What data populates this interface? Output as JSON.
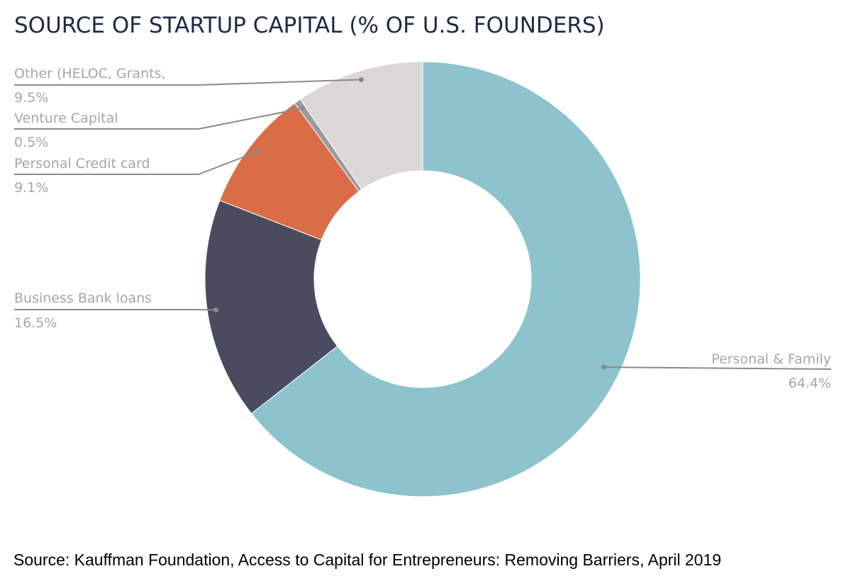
{
  "chart_data": {
    "type": "pie",
    "variant": "donut",
    "title": "SOURCE OF STARTUP CAPITAL (% OF U.S. FOUNDERS)",
    "start": "12 o'clock",
    "direction": "clockwise",
    "slices": [
      {
        "label": "Personal & Family",
        "value": 64.4,
        "value_label": "64.4%",
        "color": "#8cc3cd"
      },
      {
        "label": "Business Bank loans",
        "value": 16.5,
        "value_label": "16.5%",
        "color": "#4a4b5e"
      },
      {
        "label": "Personal Credit card",
        "value": 9.1,
        "value_label": "9.1%",
        "color": "#d96d48"
      },
      {
        "label": "Venture Capital",
        "value": 0.5,
        "value_label": "0.5%",
        "color": "#9a9aa0"
      },
      {
        "label": "Other (HELOC, Grants,",
        "value": 9.5,
        "value_label": "9.5%",
        "color": "#d9d8d6"
      }
    ],
    "label_color": "#a6a6a6",
    "leader_line_color": "#8a8a8a"
  },
  "footer": {
    "source": "Source: Kauffman Foundation, Access to Capital for Entrepreneurs: Removing Barriers, April 2019"
  },
  "colors": {
    "title": "#1f2a44",
    "background": "#ffffff"
  }
}
